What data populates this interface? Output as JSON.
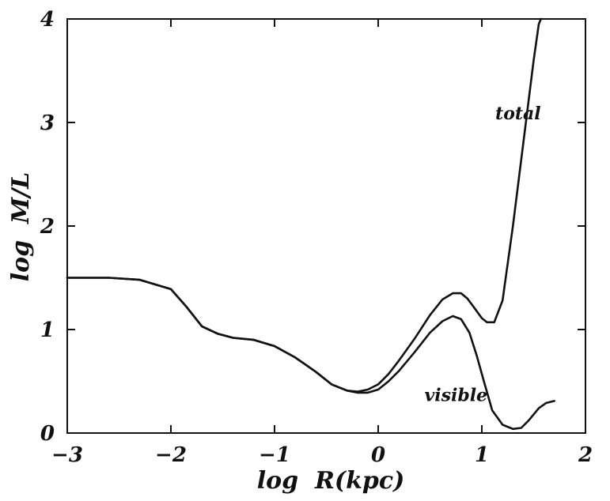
{
  "chart_data": {
    "type": "line",
    "title": "",
    "xlabel": "log  R(kpc)",
    "ylabel": "log  M/L",
    "xlim": [
      -3,
      2
    ],
    "ylim": [
      0,
      4
    ],
    "grid": false,
    "xticks": [
      {
        "value": -3,
        "label": "−3"
      },
      {
        "value": -2,
        "label": "−2"
      },
      {
        "value": -1,
        "label": "−1"
      },
      {
        "value": 0,
        "label": "0"
      },
      {
        "value": 1,
        "label": "1"
      },
      {
        "value": 2,
        "label": "2"
      }
    ],
    "yticks": [
      {
        "value": 0,
        "label": "0"
      },
      {
        "value": 1,
        "label": "1"
      },
      {
        "value": 2,
        "label": "2"
      },
      {
        "value": 3,
        "label": "3"
      },
      {
        "value": 4,
        "label": "4"
      }
    ],
    "series": [
      {
        "name": "total",
        "x": [
          -3.0,
          -2.6,
          -2.3,
          -2.0,
          -1.85,
          -1.7,
          -1.55,
          -1.4,
          -1.2,
          -1.0,
          -0.8,
          -0.6,
          -0.45,
          -0.3,
          -0.2,
          -0.1,
          0.0,
          0.1,
          0.2,
          0.35,
          0.5,
          0.62,
          0.72,
          0.8,
          0.86,
          0.92,
          1.0,
          1.05,
          1.12,
          1.2,
          1.3,
          1.4,
          1.5,
          1.55,
          1.57
        ],
        "y": [
          1.5,
          1.5,
          1.48,
          1.39,
          1.22,
          1.03,
          0.96,
          0.92,
          0.9,
          0.84,
          0.73,
          0.59,
          0.47,
          0.41,
          0.4,
          0.42,
          0.47,
          0.57,
          0.7,
          0.91,
          1.14,
          1.29,
          1.35,
          1.35,
          1.3,
          1.22,
          1.11,
          1.07,
          1.07,
          1.28,
          2.0,
          2.8,
          3.6,
          3.95,
          4.0
        ]
      },
      {
        "name": "visible",
        "x": [
          -3.0,
          -2.6,
          -2.3,
          -2.0,
          -1.85,
          -1.7,
          -1.55,
          -1.4,
          -1.2,
          -1.0,
          -0.8,
          -0.6,
          -0.45,
          -0.3,
          -0.2,
          -0.1,
          0.0,
          0.1,
          0.2,
          0.35,
          0.5,
          0.62,
          0.72,
          0.8,
          0.88,
          0.95,
          1.02,
          1.1,
          1.2,
          1.3,
          1.38,
          1.45,
          1.55,
          1.62,
          1.7
        ],
        "y": [
          1.5,
          1.5,
          1.48,
          1.39,
          1.22,
          1.03,
          0.96,
          0.92,
          0.9,
          0.84,
          0.73,
          0.59,
          0.47,
          0.41,
          0.39,
          0.39,
          0.42,
          0.5,
          0.6,
          0.78,
          0.97,
          1.08,
          1.13,
          1.1,
          0.97,
          0.75,
          0.5,
          0.22,
          0.08,
          0.04,
          0.05,
          0.12,
          0.24,
          0.29,
          0.31
        ]
      }
    ],
    "annotations": [
      {
        "text": "total",
        "x": 1.35,
        "y": 3.03
      },
      {
        "text": "visible",
        "x": 0.75,
        "y": 0.31
      }
    ]
  }
}
